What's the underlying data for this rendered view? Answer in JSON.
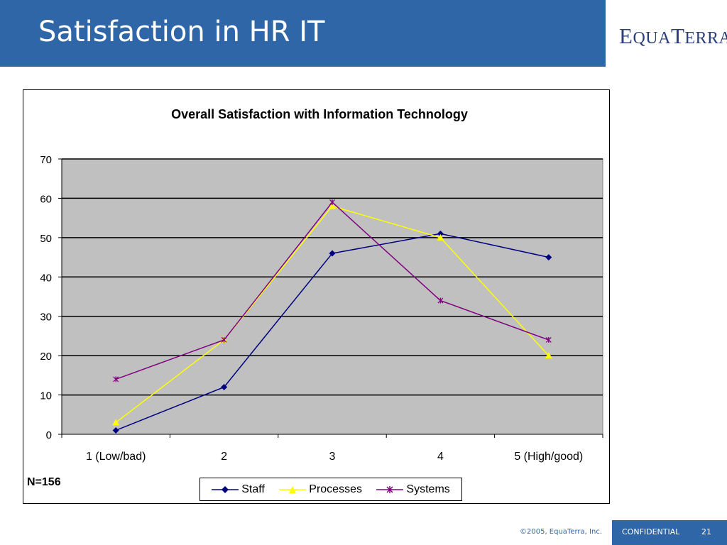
{
  "slide": {
    "title": "Satisfaction in HR IT",
    "logo_text": "EquaTerra",
    "n_label": "N=156",
    "footer_copyright": "©2005, EquaTerra, Inc.",
    "footer_confidential": "CONFIDENTIAL",
    "page_number": "21"
  },
  "colors": {
    "title_bar": "#2f66a8",
    "plot_background": "#c0c0c0",
    "staff": "#000080",
    "processes": "#ffff00",
    "systems": "#800080"
  },
  "chart_data": {
    "type": "line",
    "title": "Overall Satisfaction with Information Technology",
    "xlabel": "",
    "ylabel": "",
    "categories": [
      "1 (Low/bad)",
      "2",
      "3",
      "4",
      "5 (High/good)"
    ],
    "ylim": [
      0,
      70
    ],
    "yticks": [
      0,
      10,
      20,
      30,
      40,
      50,
      60,
      70
    ],
    "grid": true,
    "legend_position": "bottom",
    "series": [
      {
        "name": "Staff",
        "marker": "diamond",
        "values": [
          1,
          12,
          46,
          51,
          45
        ]
      },
      {
        "name": "Processes",
        "marker": "triangle",
        "values": [
          3,
          24,
          58,
          50,
          20
        ]
      },
      {
        "name": "Systems",
        "marker": "asterisk",
        "values": [
          14,
          24,
          59,
          34,
          24
        ]
      }
    ]
  }
}
